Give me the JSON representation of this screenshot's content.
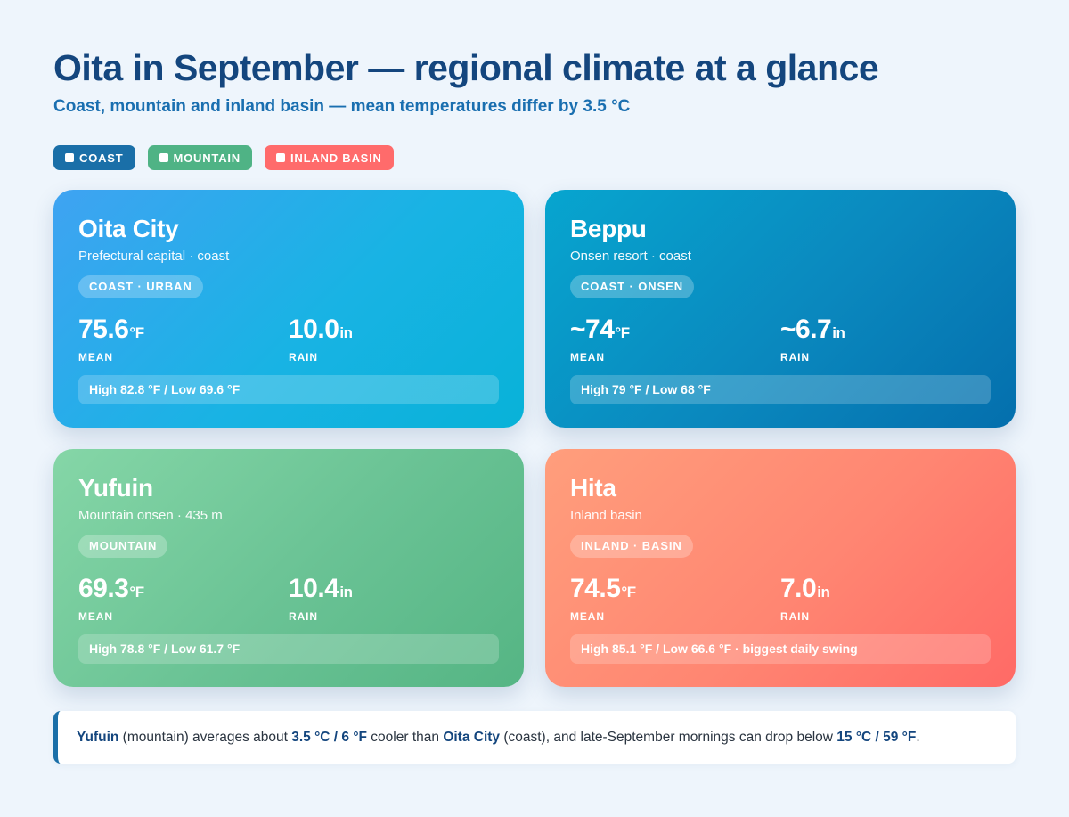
{
  "header": {
    "title": "Oita in September — regional climate at a glance",
    "subtitle": "Coast, mountain and inland basin — mean temperatures differ by 3.5 °C"
  },
  "legend": [
    {
      "label": "COAST",
      "color": "#1a6fa8"
    },
    {
      "label": "MOUNTAIN",
      "color": "#4fb385"
    },
    {
      "label": "INLAND BASIN",
      "color": "#ff6b6b"
    }
  ],
  "cards": [
    {
      "city": "Oita City",
      "desc": "Prefectural capital · coast",
      "tag": "COAST · URBAN",
      "mean_value": "75.6",
      "mean_unit": "°F",
      "mean_label": "MEAN",
      "rain_value": "10.0",
      "rain_unit": "in",
      "rain_label": "RAIN",
      "range": "High 82.8 °F / Low 69.6 °F"
    },
    {
      "city": "Beppu",
      "desc": "Onsen resort · coast",
      "tag": "COAST · ONSEN",
      "mean_value": "~74",
      "mean_unit": "°F",
      "mean_label": "MEAN",
      "rain_value": "~6.7",
      "rain_unit": "in",
      "rain_label": "RAIN",
      "range": "High 79 °F / Low 68 °F"
    },
    {
      "city": "Yufuin",
      "desc": "Mountain onsen · 435 m",
      "tag": "MOUNTAIN",
      "mean_value": "69.3",
      "mean_unit": "°F",
      "mean_label": "MEAN",
      "rain_value": "10.4",
      "rain_unit": "in",
      "rain_label": "RAIN",
      "range": "High 78.8 °F / Low 61.7 °F"
    },
    {
      "city": "Hita",
      "desc": "Inland basin",
      "tag": "INLAND · BASIN",
      "mean_value": "74.5",
      "mean_unit": "°F",
      "mean_label": "MEAN",
      "rain_value": "7.0",
      "rain_unit": "in",
      "rain_label": "RAIN",
      "range": "High 85.1 °F / Low 66.6 °F · biggest daily swing"
    }
  ],
  "note": {
    "city_a": "Yufuin",
    "text_1": " (mountain) averages about ",
    "diff": "3.5 °C / 6 °F",
    "text_2": " cooler than ",
    "city_b": "Oita City",
    "text_3": " (coast), and late-September mornings can drop below ",
    "threshold": "15 °C / 59 °F",
    "text_4": "."
  }
}
